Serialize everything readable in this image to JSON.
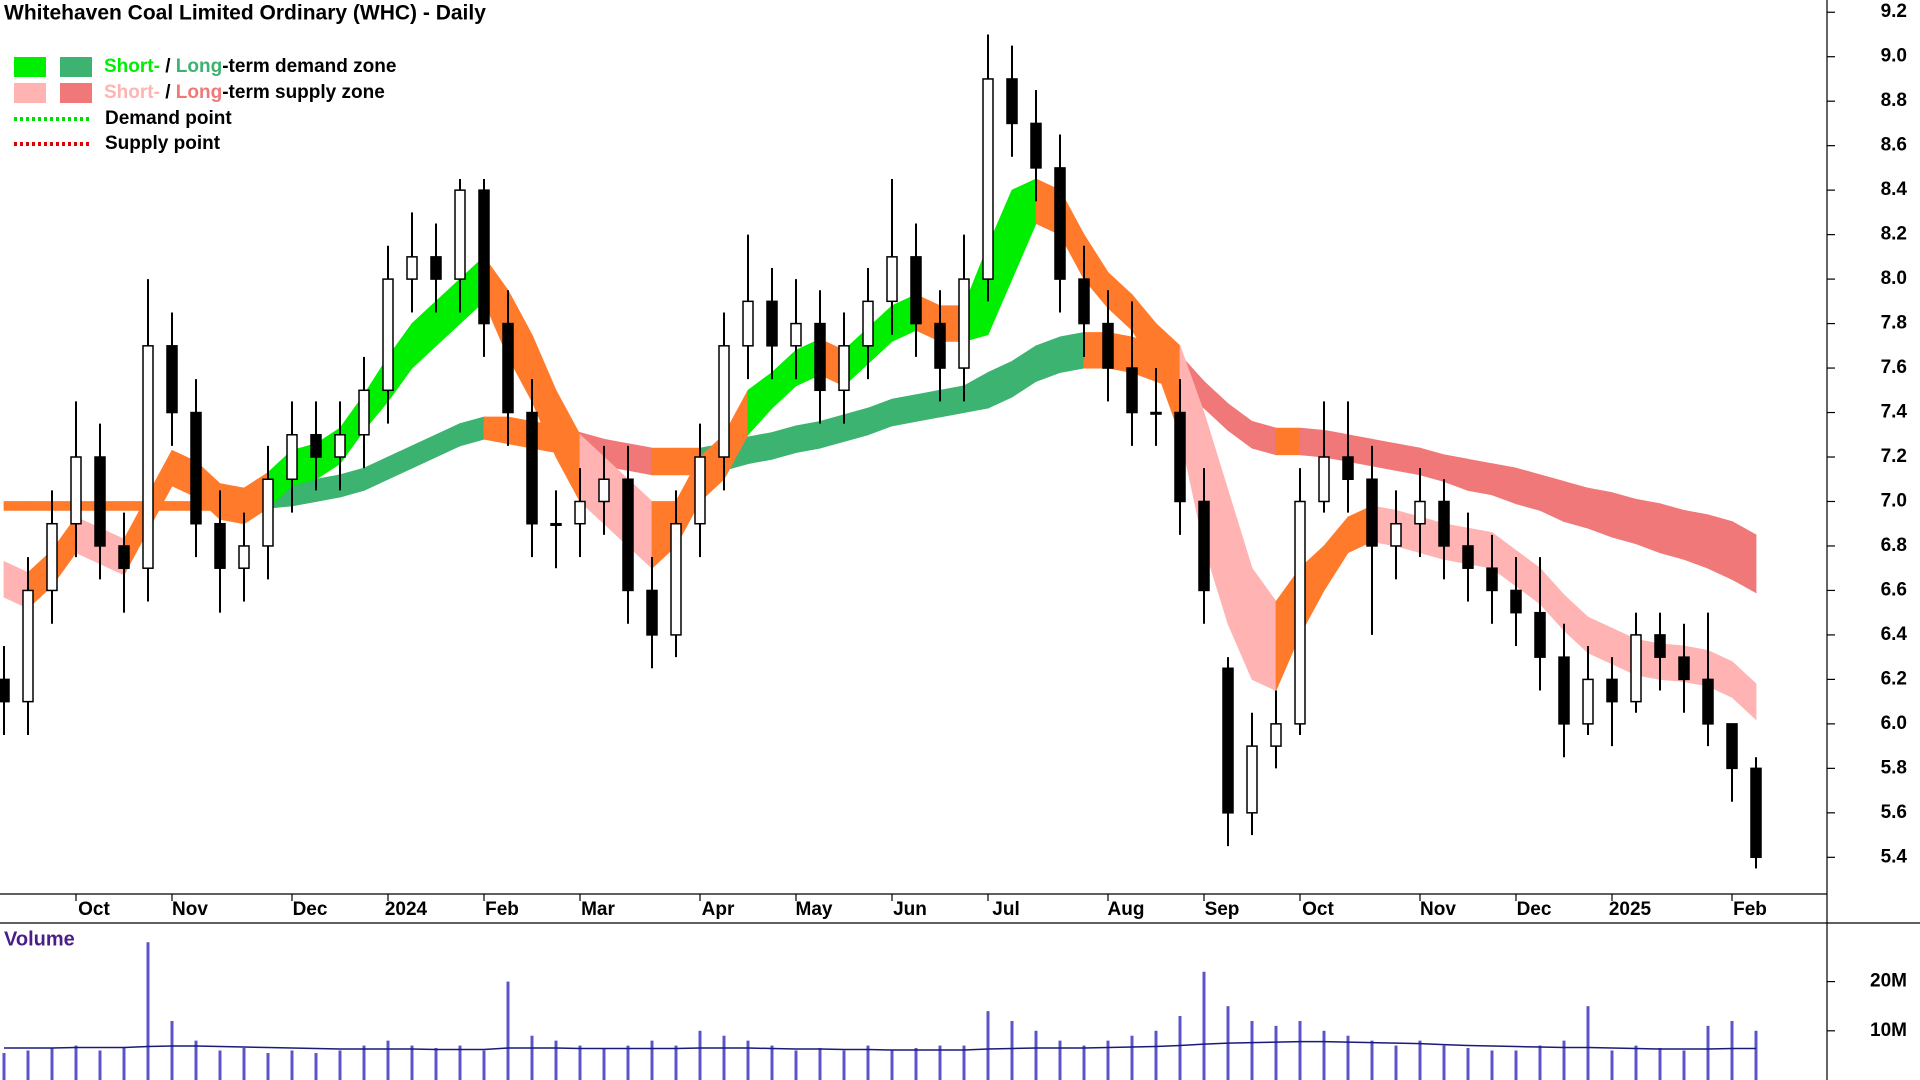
{
  "chart_data": {
    "type": "candlestick",
    "title": "Whitehaven Coal Limited Ordinary (WHC) - Daily",
    "legend": [
      {
        "short": "Short-",
        "sep": " / ",
        "long": "Long",
        "rest": "-term demand zone",
        "short_color": "#00ee00",
        "long_color": "#3cb371"
      },
      {
        "short": "Short-",
        "sep": " / ",
        "long": "Long",
        "rest": "-term supply zone",
        "short_color": "#ffb3b3",
        "long_color": "#f07878"
      },
      {
        "label": "Demand point",
        "color": "#00dd00"
      },
      {
        "label": "Supply point",
        "color": "#dd0000"
      }
    ],
    "transition_color": "#ff7a2a",
    "up_color": "#ffffff",
    "down_color": "#000000",
    "categories": [
      null,
      null,
      null,
      "Oct",
      null,
      null,
      null,
      "Nov",
      null,
      null,
      null,
      null,
      "Dec",
      null,
      null,
      null,
      "2024",
      null,
      null,
      null,
      "Feb",
      null,
      null,
      null,
      "Mar",
      null,
      null,
      null,
      null,
      "Apr",
      null,
      null,
      null,
      "May",
      null,
      null,
      null,
      "Jun",
      null,
      null,
      null,
      "Jul",
      null,
      null,
      null,
      null,
      "Aug",
      null,
      null,
      null,
      "Sep",
      null,
      null,
      null,
      "Oct",
      null,
      null,
      null,
      null,
      "Nov",
      null,
      null,
      null,
      "Dec",
      null,
      null,
      null,
      "2025",
      null,
      null,
      null,
      null,
      "Feb",
      null
    ],
    "open": [
      6.2,
      6.1,
      6.6,
      6.9,
      7.2,
      6.8,
      6.7,
      7.7,
      7.4,
      6.9,
      6.7,
      6.8,
      7.1,
      7.3,
      7.2,
      7.3,
      7.5,
      8.0,
      8.1,
      8.0,
      8.4,
      7.8,
      7.4,
      6.9,
      6.9,
      7.0,
      7.1,
      6.6,
      6.4,
      6.9,
      7.2,
      7.7,
      7.9,
      7.7,
      7.8,
      7.5,
      7.7,
      7.9,
      8.1,
      7.8,
      7.6,
      8.0,
      8.9,
      8.7,
      8.5,
      8.0,
      7.8,
      7.6,
      7.4,
      7.4,
      7.0,
      6.25,
      5.6,
      5.9,
      6.0,
      7.0,
      7.2,
      7.1,
      6.8,
      6.9,
      7.0,
      6.8,
      6.7,
      6.6,
      6.5,
      6.3,
      6.0,
      6.2,
      6.1,
      6.4,
      6.3,
      6.2,
      6.0,
      5.8
    ],
    "high": [
      6.35,
      6.75,
      7.05,
      7.45,
      7.35,
      6.95,
      8.0,
      7.85,
      7.55,
      7.05,
      6.95,
      7.25,
      7.45,
      7.45,
      7.45,
      7.65,
      8.15,
      8.3,
      8.25,
      8.45,
      8.45,
      7.95,
      7.55,
      7.05,
      7.15,
      7.25,
      7.25,
      6.75,
      7.05,
      7.35,
      7.85,
      8.2,
      8.05,
      8.0,
      7.95,
      7.85,
      8.05,
      8.45,
      8.25,
      7.95,
      8.2,
      9.1,
      9.05,
      8.85,
      8.65,
      8.15,
      7.95,
      7.9,
      7.6,
      7.55,
      7.15,
      6.3,
      6.05,
      6.15,
      7.15,
      7.45,
      7.45,
      7.25,
      7.05,
      7.15,
      7.1,
      6.95,
      6.85,
      6.75,
      6.75,
      6.45,
      6.35,
      6.3,
      6.5,
      6.5,
      6.45,
      6.5,
      6.0,
      5.85
    ],
    "low": [
      5.95,
      5.95,
      6.45,
      6.75,
      6.65,
      6.5,
      6.55,
      7.25,
      6.75,
      6.5,
      6.55,
      6.65,
      6.95,
      7.05,
      7.05,
      7.15,
      7.35,
      7.85,
      7.85,
      7.85,
      7.65,
      7.25,
      6.75,
      6.7,
      6.75,
      6.85,
      6.45,
      6.25,
      6.3,
      6.75,
      7.05,
      7.55,
      7.55,
      7.55,
      7.35,
      7.35,
      7.55,
      7.75,
      7.65,
      7.45,
      7.45,
      7.9,
      8.55,
      8.35,
      7.85,
      7.65,
      7.45,
      7.25,
      7.25,
      6.85,
      6.45,
      5.45,
      5.5,
      5.8,
      5.95,
      6.95,
      6.95,
      6.4,
      6.65,
      6.75,
      6.65,
      6.55,
      6.45,
      6.35,
      6.15,
      5.85,
      5.95,
      5.9,
      6.05,
      6.15,
      6.05,
      5.9,
      5.65,
      5.35
    ],
    "close": [
      6.1,
      6.6,
      6.9,
      7.2,
      6.8,
      6.7,
      7.7,
      7.4,
      6.9,
      6.7,
      6.8,
      7.1,
      7.3,
      7.2,
      7.3,
      7.5,
      8.0,
      8.1,
      8.0,
      8.4,
      7.8,
      7.4,
      6.9,
      6.9,
      7.0,
      7.1,
      6.6,
      6.4,
      6.9,
      7.2,
      7.7,
      7.9,
      7.7,
      7.8,
      7.5,
      7.7,
      7.9,
      8.1,
      7.8,
      7.6,
      8.0,
      8.9,
      8.7,
      8.5,
      8.0,
      7.8,
      7.6,
      7.4,
      7.4,
      7.0,
      6.6,
      5.6,
      5.9,
      6.0,
      7.0,
      7.2,
      7.1,
      6.8,
      6.9,
      7.0,
      6.8,
      6.7,
      6.6,
      6.5,
      6.3,
      6.0,
      6.2,
      6.1,
      6.4,
      6.3,
      6.2,
      6.0,
      5.8,
      5.4
    ],
    "short_zone": {
      "upper": [
        6.73,
        6.68,
        6.78,
        6.93,
        6.88,
        6.83,
        7.03,
        7.23,
        7.18,
        7.08,
        7.06,
        7.13,
        7.23,
        7.26,
        7.33,
        7.48,
        7.65,
        7.8,
        7.9,
        8.0,
        8.1,
        7.95,
        7.75,
        7.5,
        7.3,
        7.2,
        7.1,
        7.0,
        7.0,
        7.2,
        7.3,
        7.5,
        7.58,
        7.68,
        7.73,
        7.68,
        7.78,
        7.88,
        7.93,
        7.88,
        7.88,
        8.15,
        8.4,
        8.45,
        8.4,
        8.2,
        8.03,
        7.93,
        7.8,
        7.7,
        7.4,
        7.05,
        6.7,
        6.55,
        6.7,
        6.8,
        6.93,
        6.98,
        6.96,
        6.93,
        6.9,
        6.88,
        6.86,
        6.78,
        6.7,
        6.58,
        6.48,
        6.43,
        6.38,
        6.36,
        6.35,
        6.33,
        6.28,
        6.18
      ],
      "lower": [
        6.57,
        6.52,
        6.62,
        6.77,
        6.72,
        6.67,
        6.87,
        7.07,
        7.02,
        6.92,
        6.9,
        6.97,
        7.07,
        7.1,
        7.17,
        7.32,
        7.45,
        7.6,
        7.7,
        7.8,
        7.9,
        7.65,
        7.45,
        7.2,
        7.0,
        6.9,
        6.8,
        6.7,
        6.8,
        7.0,
        7.1,
        7.3,
        7.42,
        7.52,
        7.57,
        7.52,
        7.62,
        7.72,
        7.77,
        7.72,
        7.72,
        7.75,
        8.0,
        8.25,
        8.2,
        8.0,
        7.87,
        7.77,
        7.6,
        7.3,
        6.8,
        6.45,
        6.2,
        6.15,
        6.4,
        6.6,
        6.77,
        6.82,
        6.8,
        6.77,
        6.74,
        6.72,
        6.7,
        6.62,
        6.54,
        6.42,
        6.32,
        6.27,
        6.22,
        6.2,
        6.19,
        6.17,
        6.12,
        6.02
      ]
    },
    "long_zone": {
      "upper": [
        7.0,
        7.0,
        7.0,
        7.0,
        7.0,
        7.0,
        7.0,
        7.0,
        7.0,
        7.0,
        7.0,
        7.07,
        7.08,
        7.1,
        7.12,
        7.15,
        7.2,
        7.25,
        7.3,
        7.35,
        7.38,
        7.38,
        7.36,
        7.34,
        7.31,
        7.28,
        7.26,
        7.24,
        7.24,
        7.24,
        7.26,
        7.29,
        7.31,
        7.34,
        7.36,
        7.39,
        7.42,
        7.46,
        7.48,
        7.5,
        7.52,
        7.58,
        7.63,
        7.7,
        7.74,
        7.76,
        7.76,
        7.74,
        7.7,
        7.66,
        7.54,
        7.44,
        7.36,
        7.33,
        7.33,
        7.32,
        7.3,
        7.28,
        7.26,
        7.24,
        7.21,
        7.19,
        7.17,
        7.15,
        7.12,
        7.09,
        7.06,
        7.04,
        7.01,
        6.99,
        6.96,
        6.94,
        6.91,
        6.85
      ],
      "lower": [
        6.96,
        6.96,
        6.96,
        6.96,
        6.96,
        6.96,
        6.96,
        6.96,
        6.96,
        6.96,
        6.96,
        6.97,
        6.98,
        7.0,
        7.02,
        7.05,
        7.1,
        7.15,
        7.2,
        7.25,
        7.28,
        7.26,
        7.24,
        7.22,
        7.19,
        7.16,
        7.14,
        7.12,
        7.12,
        7.12,
        7.14,
        7.17,
        7.19,
        7.22,
        7.24,
        7.27,
        7.3,
        7.34,
        7.36,
        7.38,
        7.4,
        7.42,
        7.47,
        7.54,
        7.58,
        7.6,
        7.6,
        7.58,
        7.54,
        7.5,
        7.42,
        7.32,
        7.24,
        7.21,
        7.21,
        7.2,
        7.18,
        7.16,
        7.14,
        7.12,
        7.09,
        7.05,
        7.03,
        6.99,
        6.96,
        6.91,
        6.88,
        6.84,
        6.81,
        6.77,
        6.74,
        6.7,
        6.65,
        6.59
      ]
    },
    "ylim": [
      5.235,
      9.255
    ],
    "yticks": [
      5.4,
      5.6,
      5.8,
      {
        "value": 6,
        "label": "6.0"
      },
      6.2,
      6.4,
      6.6,
      6.8,
      {
        "value": 7,
        "label": "7.0"
      },
      7.2,
      7.4,
      7.6,
      7.8,
      {
        "value": 8,
        "label": "8.0"
      },
      8.2,
      8.4,
      8.6,
      8.8,
      {
        "value": 9,
        "label": "9.0"
      },
      9.2
    ],
    "volume": {
      "label": "Volume",
      "color": "#5b55c8",
      "values": [
        5500000,
        6000000,
        6500000,
        7000000,
        6000000,
        6500000,
        28000000,
        12000000,
        8000000,
        6000000,
        6500000,
        5500000,
        6000000,
        5500000,
        6000000,
        7000000,
        8000000,
        7000000,
        6500000,
        7000000,
        6000000,
        20000000,
        9000000,
        8000000,
        7000000,
        6500000,
        7000000,
        8000000,
        7000000,
        10000000,
        9000000,
        8000000,
        7000000,
        6000000,
        6500000,
        6000000,
        7000000,
        6000000,
        6500000,
        7000000,
        7000000,
        14000000,
        12000000,
        10000000,
        8000000,
        7000000,
        8000000,
        9000000,
        10000000,
        13000000,
        22000000,
        15000000,
        12000000,
        11000000,
        12000000,
        10000000,
        9000000,
        8000000,
        7000000,
        8000000,
        7000000,
        6500000,
        6000000,
        6000000,
        7000000,
        8000000,
        15000000,
        6000000,
        7000000,
        6500000,
        6000000,
        11000000,
        12000000,
        10000000
      ],
      "average": [
        6500000,
        6500000,
        6500000,
        6600000,
        6600000,
        6600000,
        6800000,
        6900000,
        6900000,
        6800000,
        6700000,
        6600000,
        6500000,
        6400000,
        6300000,
        6300000,
        6300000,
        6300000,
        6200000,
        6200000,
        6200000,
        6500000,
        6500000,
        6500000,
        6400000,
        6400000,
        6400000,
        6400000,
        6400000,
        6500000,
        6500000,
        6500000,
        6400000,
        6300000,
        6300000,
        6200000,
        6200000,
        6100000,
        6100000,
        6100000,
        6100000,
        6300000,
        6400000,
        6500000,
        6500000,
        6500000,
        6600000,
        6700000,
        6800000,
        7000000,
        7300000,
        7500000,
        7600000,
        7700000,
        7800000,
        7800000,
        7700000,
        7600000,
        7500000,
        7400000,
        7200000,
        7000000,
        6900000,
        6800000,
        6700000,
        6600000,
        6600000,
        6500000,
        6400000,
        6300000,
        6300000,
        6300000,
        6400000,
        6400000
      ],
      "ylim": [
        0,
        31500000
      ],
      "yticks": [
        {
          "value": 10000000,
          "label": "10M"
        },
        {
          "value": 20000000,
          "label": "20M"
        }
      ]
    }
  }
}
